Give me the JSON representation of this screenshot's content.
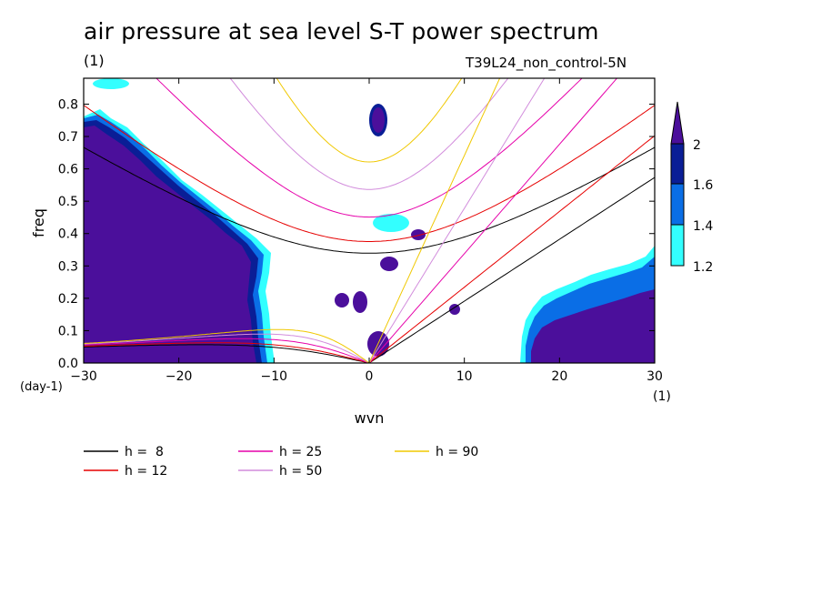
{
  "chart_data": {
    "type": "heatmap",
    "title": "air pressure at sea level S-T power spectrum",
    "units_label": "(1)",
    "experiment_label": "T39L24_non_control-5N",
    "xlabel": "wvn",
    "x_units": "(1)",
    "ylabel": "freq",
    "y_units": "(day-1)",
    "xlim": [
      -30,
      30
    ],
    "ylim": [
      0,
      0.88
    ],
    "x_ticks": [
      -30,
      -20,
      -10,
      0,
      10,
      20,
      30
    ],
    "y_ticks": [
      0.0,
      0.1,
      0.2,
      0.3,
      0.4,
      0.5,
      0.6,
      0.7,
      0.8
    ],
    "colorbar": {
      "levels": [
        "1.2",
        "1.4",
        "1.6",
        "2"
      ],
      "colors": [
        "#33ffff",
        "#0a6ee6",
        "#0a1e96",
        "#4b0f9b"
      ]
    },
    "legend": [
      {
        "label": "h =  8",
        "color": "#000000"
      },
      {
        "label": "h = 12",
        "color": "#e60000"
      },
      {
        "label": "h = 25",
        "color": "#e600aa"
      },
      {
        "label": "h = 50",
        "color": "#d28cdc"
      },
      {
        "label": "h = 90",
        "color": "#f0c800"
      }
    ]
  }
}
